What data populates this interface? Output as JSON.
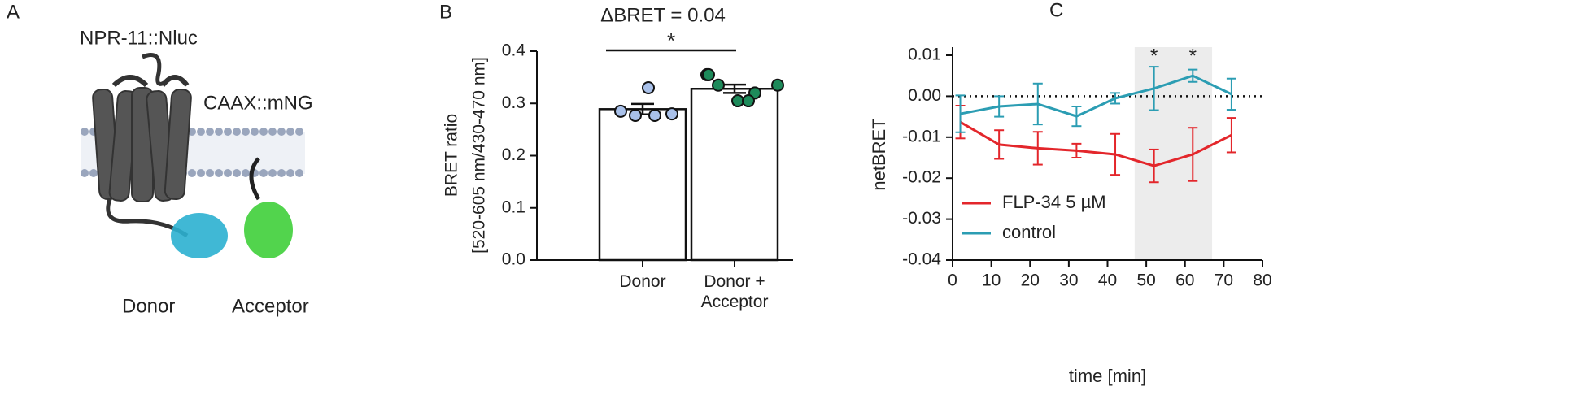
{
  "diagram": {
    "label": "A",
    "receptor": "NPR-11::Nluc",
    "membrane_anchor": "CAAX::mNG",
    "donor": "Donor",
    "acceptor": "Acceptor"
  },
  "chart_data": [
    {
      "type": "bar",
      "label": "B",
      "title": "ΔBRET = 0.04",
      "significance": "*",
      "ylabel": [
        "BRET ratio",
        "[520-605 nm/430-470 nm]"
      ],
      "categories": [
        "Donor",
        "Donor + Acceptor"
      ],
      "values": [
        0.289,
        0.328
      ],
      "errors": [
        0.01,
        0.008
      ],
      "color": "#ffffff",
      "points": [
        [
          0.285,
          0.277,
          0.33,
          0.277,
          0.28
        ],
        [
          0.335,
          0.305,
          0.32,
          0.355,
          0.335,
          0.305,
          0.355
        ]
      ],
      "point_colors": [
        "#a9c1ea",
        "#1d8a5a"
      ],
      "ylim": [
        0,
        0.4
      ],
      "yticks": [
        {
          "value": 0,
          "label": "0.0"
        },
        0.1,
        0.2,
        0.3,
        0.4
      ]
    },
    {
      "type": "line",
      "label": "C",
      "xlabel": "time [min]",
      "ylabel": "netBRET",
      "x": [
        2,
        12,
        22,
        32,
        42,
        52,
        62,
        72
      ],
      "series": [
        {
          "name": "FLP-34 5 µM",
          "color": "#e3262b",
          "values": [
            -0.0063,
            -0.0118,
            -0.0127,
            -0.0133,
            -0.0142,
            -0.017,
            -0.0142,
            -0.0095
          ],
          "errors": [
            0.004,
            0.0035,
            0.004,
            0.0017,
            0.005,
            0.004,
            0.0065,
            0.0042
          ]
        },
        {
          "name": "control",
          "color": "#2b9db3",
          "values": [
            -0.0043,
            -0.0025,
            -0.0019,
            -0.0049,
            -0.0005,
            0.0019,
            0.005,
            0.0005
          ],
          "errors": [
            0.0045,
            0.0025,
            0.005,
            0.0024,
            0.0013,
            0.0053,
            0.0015,
            0.0038
          ]
        }
      ],
      "xlim": [
        0,
        80
      ],
      "xticks": [
        0,
        10,
        20,
        30,
        40,
        50,
        60,
        70,
        80
      ],
      "ylim": [
        -0.04,
        0.01
      ],
      "yticks": [
        0.01,
        {
          "value": 0,
          "label": "0.00"
        },
        -0.01,
        -0.02,
        -0.03,
        -0.04
      ],
      "shaded_x": [
        47,
        67
      ],
      "reference_line": 0,
      "annotations": [
        {
          "x": 52,
          "text": "*"
        },
        {
          "x": 62,
          "text": "*"
        }
      ],
      "legend": "lower left"
    }
  ]
}
